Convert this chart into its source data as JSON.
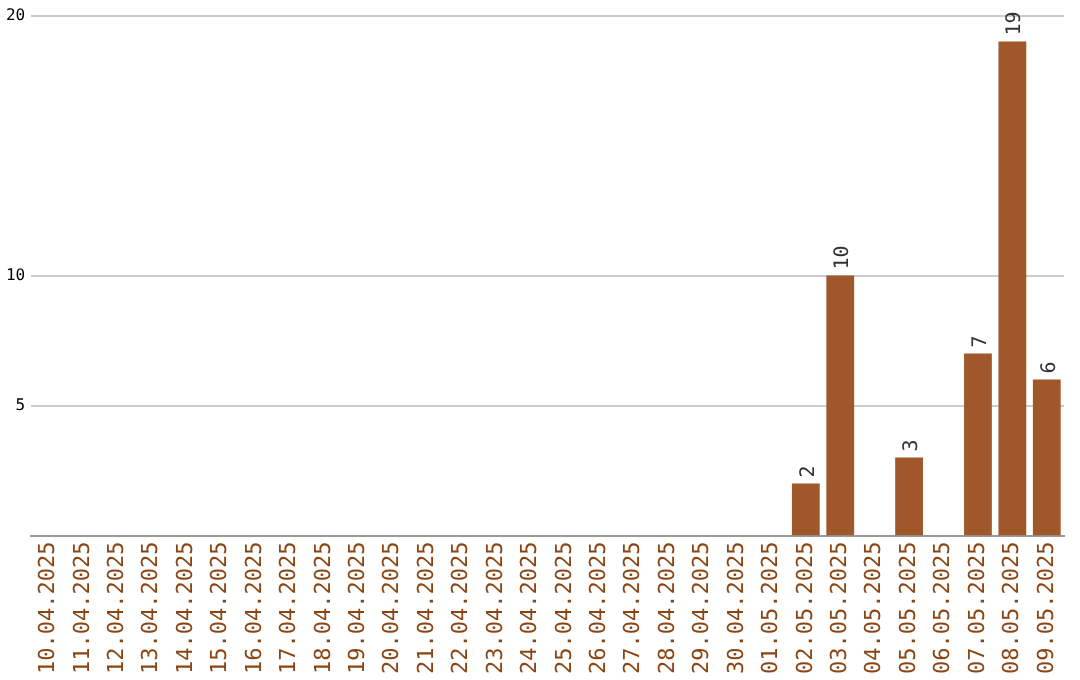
{
  "chart_data": {
    "type": "bar",
    "categories": [
      "10.04.2025",
      "11.04.2025",
      "12.04.2025",
      "13.04.2025",
      "14.04.2025",
      "15.04.2025",
      "16.04.2025",
      "17.04.2025",
      "18.04.2025",
      "19.04.2025",
      "20.04.2025",
      "21.04.2025",
      "22.04.2025",
      "23.04.2025",
      "24.04.2025",
      "25.04.2025",
      "26.04.2025",
      "27.04.2025",
      "28.04.2025",
      "29.04.2025",
      "30.04.2025",
      "01.05.2025",
      "02.05.2025",
      "03.05.2025",
      "04.05.2025",
      "05.05.2025",
      "06.05.2025",
      "07.05.2025",
      "08.05.2025",
      "09.05.2025"
    ],
    "values": [
      0,
      0,
      0,
      0,
      0,
      0,
      0,
      0,
      0,
      0,
      0,
      0,
      0,
      0,
      0,
      0,
      0,
      0,
      0,
      0,
      0,
      0,
      2,
      10,
      0,
      3,
      0,
      7,
      19,
      6
    ],
    "value_labels": [
      null,
      null,
      null,
      null,
      null,
      null,
      null,
      null,
      null,
      null,
      null,
      null,
      null,
      null,
      null,
      null,
      null,
      null,
      null,
      null,
      null,
      null,
      "2",
      "10",
      null,
      "3",
      null,
      "7",
      "19",
      "6"
    ],
    "color": "#a0572a",
    "ylim": [
      0,
      20
    ],
    "yticks": [
      5,
      10,
      20
    ],
    "grid": "y",
    "legend": false
  }
}
